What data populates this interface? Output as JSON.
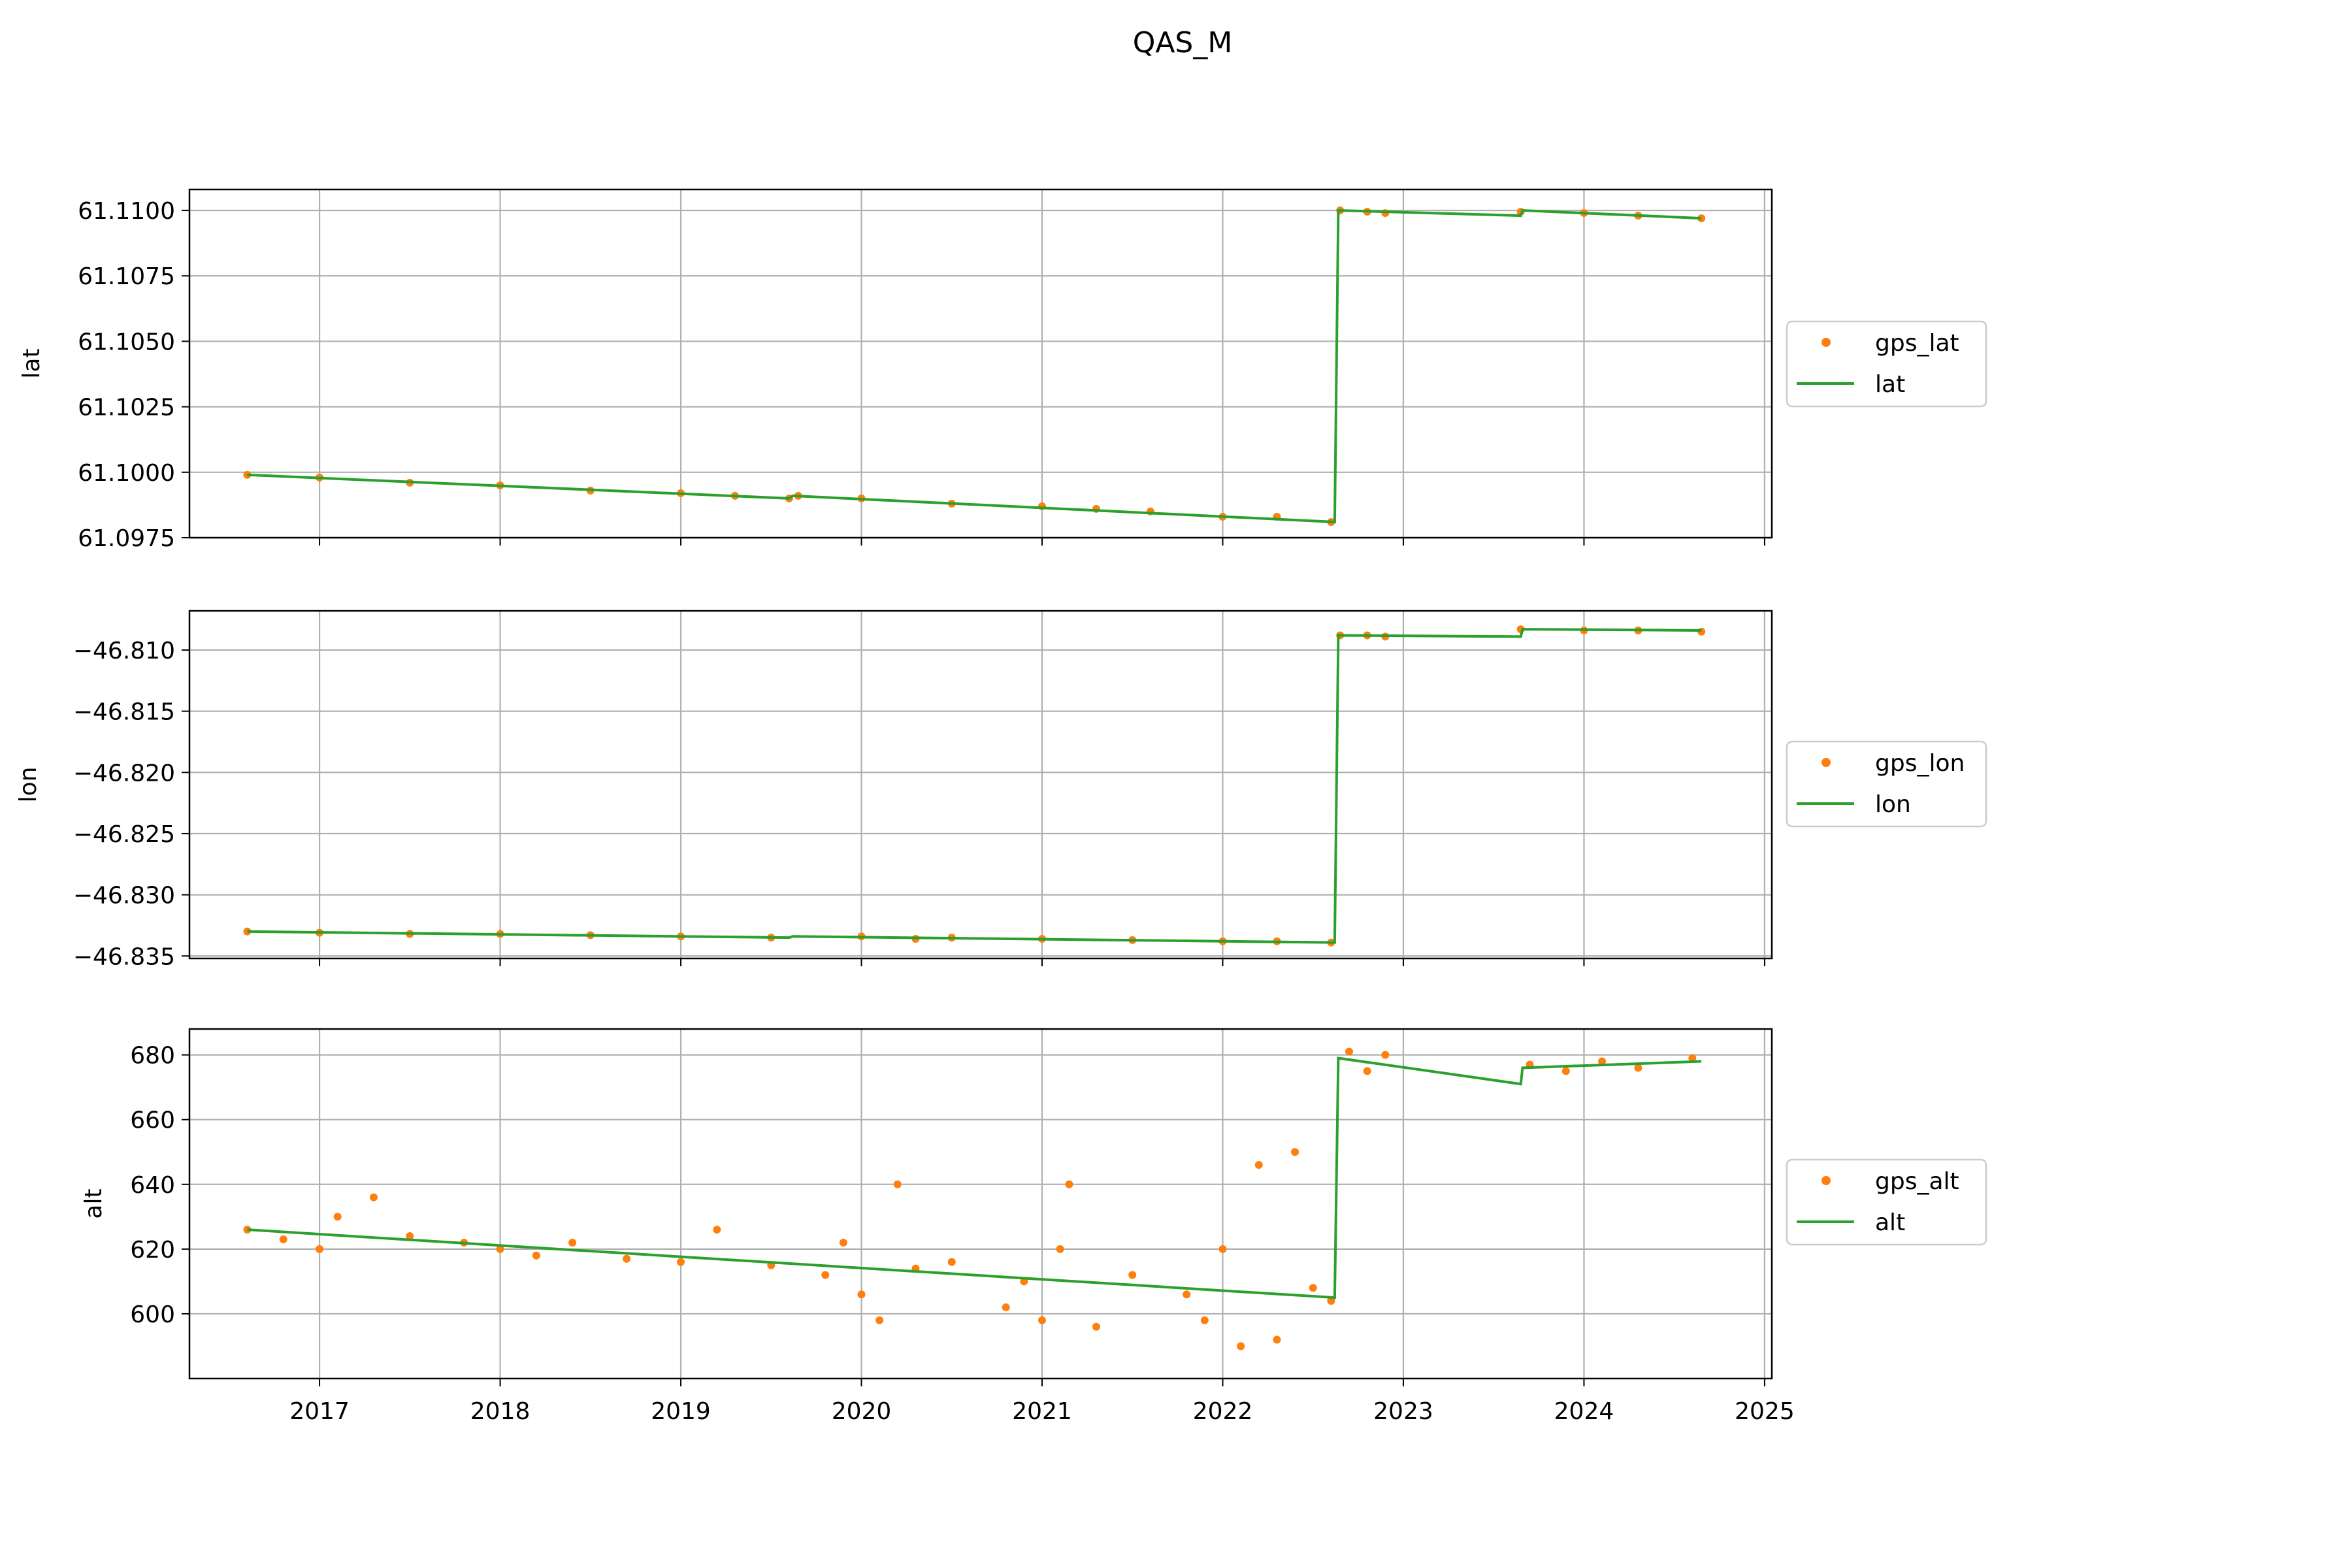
{
  "figure": {
    "title": "QAS_M"
  },
  "colors": {
    "gps": "#ff7f0e",
    "model": "#2ca02c",
    "grid": "#b0b0b0",
    "axes": "#000000"
  },
  "chart_data": [
    {
      "type": "scatter",
      "ylabel": "lat",
      "ylim": [
        61.0975,
        61.1108
      ],
      "yticks": [
        "61.0975",
        "61.1000",
        "61.1025",
        "61.1050",
        "61.1075",
        "61.1100"
      ],
      "legend_placement": "right",
      "series": [
        {
          "name": "gps_lat",
          "kind": "points",
          "x": [
            2016.6,
            2017.0,
            2017.5,
            2018.0,
            2018.5,
            2019.0,
            2019.3,
            2019.6,
            2019.65,
            2020.0,
            2020.5,
            2021.0,
            2021.3,
            2021.6,
            2022.0,
            2022.3,
            2022.6,
            2022.65,
            2022.8,
            2022.9,
            2023.65,
            2024.0,
            2024.3,
            2024.65
          ],
          "y": [
            61.0999,
            61.0998,
            61.0996,
            61.0995,
            61.0993,
            61.0992,
            61.0991,
            61.099,
            61.0991,
            61.099,
            61.0988,
            61.0987,
            61.0986,
            61.0985,
            61.0983,
            61.0983,
            61.0981,
            61.11,
            61.10995,
            61.1099,
            61.10995,
            61.1099,
            61.1098,
            61.1097
          ]
        },
        {
          "name": "lat",
          "kind": "line",
          "x": [
            2016.6,
            2019.6,
            2019.62,
            2022.62,
            2022.64,
            2023.65,
            2023.66,
            2024.65
          ],
          "y": [
            61.0999,
            61.099,
            61.0991,
            61.0981,
            61.11,
            61.1098,
            61.11,
            61.1097
          ]
        }
      ]
    },
    {
      "type": "scatter",
      "ylabel": "lon",
      "ylim": [
        -46.8352,
        -46.8068
      ],
      "yticks": [
        "−46.835",
        "−46.830",
        "−46.825",
        "−46.820",
        "−46.815",
        "−46.810"
      ],
      "legend_placement": "right",
      "series": [
        {
          "name": "gps_lon",
          "kind": "points",
          "x": [
            2016.6,
            2017.0,
            2017.5,
            2018.0,
            2018.5,
            2019.0,
            2019.5,
            2020.0,
            2020.3,
            2020.5,
            2021.0,
            2021.5,
            2022.0,
            2022.3,
            2022.6,
            2022.65,
            2022.8,
            2022.9,
            2023.65,
            2024.0,
            2024.3,
            2024.65
          ],
          "y": [
            -46.833,
            -46.8331,
            -46.8332,
            -46.8332,
            -46.8333,
            -46.8334,
            -46.8335,
            -46.8334,
            -46.8336,
            -46.8335,
            -46.8336,
            -46.8337,
            -46.8338,
            -46.8338,
            -46.8339,
            -46.8088,
            -46.8088,
            -46.8089,
            -46.8083,
            -46.8084,
            -46.8084,
            -46.8085
          ]
        },
        {
          "name": "lon",
          "kind": "line",
          "x": [
            2016.6,
            2019.6,
            2019.62,
            2022.62,
            2022.64,
            2023.65,
            2023.66,
            2024.65
          ],
          "y": [
            -46.833,
            -46.8335,
            -46.8334,
            -46.8339,
            -46.8088,
            -46.8089,
            -46.8083,
            -46.8084
          ]
        }
      ]
    },
    {
      "type": "scatter",
      "ylabel": "alt",
      "ylim": [
        580,
        688
      ],
      "yticks": [
        "600",
        "620",
        "640",
        "660",
        "680"
      ],
      "xlim": [
        2016.28,
        2025.04
      ],
      "xticks": [
        "2017",
        "2018",
        "2019",
        "2020",
        "2021",
        "2022",
        "2023",
        "2024",
        "2025"
      ],
      "legend_placement": "right",
      "series": [
        {
          "name": "gps_alt",
          "kind": "points",
          "x": [
            2016.6,
            2016.8,
            2017.0,
            2017.1,
            2017.3,
            2017.5,
            2017.8,
            2018.0,
            2018.2,
            2018.4,
            2018.7,
            2019.0,
            2019.2,
            2019.5,
            2019.8,
            2019.9,
            2020.0,
            2020.1,
            2020.2,
            2020.3,
            2020.5,
            2020.8,
            2020.9,
            2021.0,
            2021.1,
            2021.15,
            2021.3,
            2021.5,
            2021.8,
            2021.9,
            2022.0,
            2022.1,
            2022.2,
            2022.3,
            2022.4,
            2022.5,
            2022.6,
            2022.7,
            2022.8,
            2022.9,
            2023.7,
            2023.9,
            2024.1,
            2024.3,
            2024.6
          ],
          "y": [
            626,
            623,
            620,
            630,
            636,
            624,
            622,
            620,
            618,
            622,
            617,
            616,
            626,
            615,
            612,
            622,
            606,
            598,
            640,
            614,
            616,
            602,
            610,
            598,
            620,
            640,
            596,
            612,
            606,
            598,
            620,
            590,
            646,
            592,
            650,
            608,
            604,
            681,
            675,
            680,
            677,
            675,
            678,
            676,
            679
          ]
        },
        {
          "name": "alt",
          "kind": "line",
          "x": [
            2016.6,
            2022.62,
            2022.64,
            2023.65,
            2023.66,
            2024.65
          ],
          "y": [
            626,
            605,
            679,
            671,
            676,
            678
          ]
        }
      ]
    }
  ]
}
